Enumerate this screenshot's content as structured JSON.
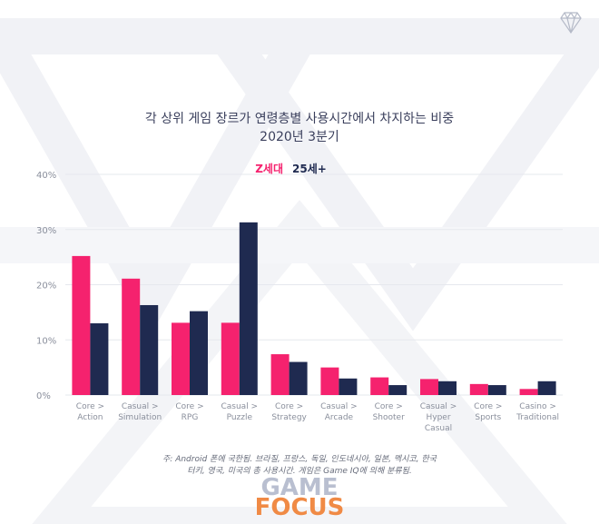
{
  "chart_data": {
    "type": "bar",
    "title": "각 상위 게임 장르가 연령층별 사용시간에서 차지하는 비중",
    "subtitle": "2020년 3분기",
    "categories": [
      [
        "Core >",
        "Action"
      ],
      [
        "Casual >",
        "Simulation"
      ],
      [
        "Core >",
        "RPG"
      ],
      [
        "Casual >",
        "Puzzle"
      ],
      [
        "Core >",
        "Strategy"
      ],
      [
        "Casual >",
        "Arcade"
      ],
      [
        "Core >",
        "Shooter"
      ],
      [
        "Casual >",
        "Hyper",
        "Casual"
      ],
      [
        "Core >",
        "Sports"
      ],
      [
        "Casino >",
        "Traditional"
      ]
    ],
    "series": [
      {
        "name": "Z세대",
        "color": "#f5226e",
        "values": [
          25.2,
          21.1,
          13.1,
          13.1,
          7.4,
          5.0,
          3.2,
          2.9,
          2.0,
          1.1
        ]
      },
      {
        "name": "25세+",
        "color": "#1f2a50",
        "values": [
          13.0,
          16.3,
          15.2,
          31.3,
          6.0,
          3.0,
          1.8,
          2.5,
          1.8,
          2.5
        ]
      }
    ],
    "ylim": [
      0,
      40
    ],
    "yticks": [
      0,
      10,
      20,
      30,
      40
    ],
    "ytick_suffix": "%",
    "legend": "top-center",
    "grid": true
  },
  "footnote": {
    "line1": "주: Android 폰에 국한됨. 브라질, 프랑스, 독일, 인도네시아, 일본, 멕시코, 한국",
    "line2": "터키, 영국, 미국의 총 사용시간. 게임은 Game IQ에 의해 분류됨."
  },
  "logo": {
    "part1": "GAME",
    "part2": "FOCUS"
  },
  "colors": {
    "grid": "#e6e8ee",
    "watermark": "#f2f3f7"
  },
  "icon": "diamond-icon"
}
